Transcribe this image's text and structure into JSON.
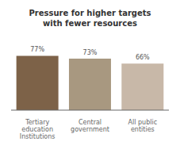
{
  "chart_data": {
    "type": "bar",
    "title": "Pressure for higher targets\nwith fewer resources",
    "categories": [
      "Tertiary\neducation\nInstitutions",
      "Central\ngovernment",
      "All public\nentities"
    ],
    "values": [
      77,
      73,
      66
    ],
    "value_labels": [
      "77%",
      "73%",
      "66%"
    ],
    "colors": [
      "#7d6248",
      "#a89880",
      "#c8b8a8"
    ],
    "ylim": [
      0,
      100
    ],
    "grid": false,
    "data_labels": true,
    "tick_labels": "x"
  }
}
